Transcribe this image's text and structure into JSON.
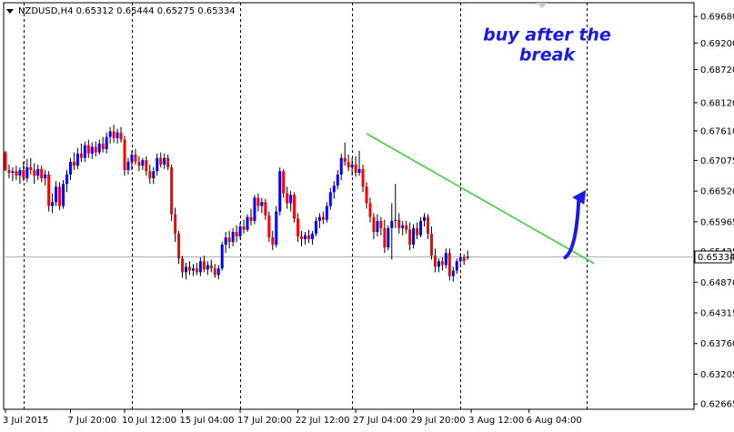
{
  "chart_data": {
    "type": "candlestick",
    "symbol": "NZDUSD,H4",
    "ohlc_header": [
      "0.65312",
      "0.65444",
      "0.65275",
      "0.65334"
    ],
    "current_price": 0.65334,
    "current_price_label": "0.65334",
    "ylim": [
      0.6257,
      0.6993
    ],
    "y_ticks": [
      {
        "value": 0.6968,
        "label": "0.69680"
      },
      {
        "value": 0.692,
        "label": "0.69200"
      },
      {
        "value": 0.6872,
        "label": "0.68720"
      },
      {
        "value": 0.6812,
        "label": "0.68120"
      },
      {
        "value": 0.6761,
        "label": "0.67610"
      },
      {
        "value": 0.67075,
        "label": "0.67075"
      },
      {
        "value": 0.6652,
        "label": "0.66520"
      },
      {
        "value": 0.65965,
        "label": "0.65965"
      },
      {
        "value": 0.65425,
        "label": "0.65425"
      },
      {
        "value": 0.6487,
        "label": "0.64870"
      },
      {
        "value": 0.64315,
        "label": "0.64315"
      },
      {
        "value": 0.6376,
        "label": "0.63760"
      },
      {
        "value": 0.63205,
        "label": "0.63205"
      },
      {
        "value": 0.62665,
        "label": "0.62665"
      }
    ],
    "x_ticks": [
      {
        "index": 0,
        "label": "3 Jul 2015"
      },
      {
        "index": 18,
        "label": "7 Jul 20:00"
      },
      {
        "index": 33,
        "label": "10 Jul 12:00"
      },
      {
        "index": 49,
        "label": "15 Jul 04:00"
      },
      {
        "index": 65,
        "label": "17 Jul 20:00"
      },
      {
        "index": 81,
        "label": "22 Jul 12:00"
      },
      {
        "index": 97,
        "label": "27 Jul 04:00"
      },
      {
        "index": 113,
        "label": "29 Jul 20:00"
      },
      {
        "index": 129,
        "label": "3 Aug 12:00"
      },
      {
        "index": 145,
        "label": "6 Aug 04:00"
      }
    ],
    "period_separators": [
      5,
      35,
      65,
      96,
      126,
      161
    ],
    "candles": [
      {
        "o": 0.6722,
        "h": 0.6725,
        "l": 0.6688,
        "c": 0.669
      },
      {
        "o": 0.669,
        "h": 0.67,
        "l": 0.6675,
        "c": 0.6685
      },
      {
        "o": 0.6685,
        "h": 0.6695,
        "l": 0.667,
        "c": 0.6688
      },
      {
        "o": 0.6688,
        "h": 0.6698,
        "l": 0.6672,
        "c": 0.668
      },
      {
        "o": 0.668,
        "h": 0.6695,
        "l": 0.6665,
        "c": 0.669
      },
      {
        "o": 0.669,
        "h": 0.6705,
        "l": 0.667,
        "c": 0.6675
      },
      {
        "o": 0.6675,
        "h": 0.671,
        "l": 0.6668,
        "c": 0.6695
      },
      {
        "o": 0.6695,
        "h": 0.6712,
        "l": 0.6682,
        "c": 0.669
      },
      {
        "o": 0.669,
        "h": 0.6702,
        "l": 0.6665,
        "c": 0.668
      },
      {
        "o": 0.668,
        "h": 0.67,
        "l": 0.6672,
        "c": 0.6692
      },
      {
        "o": 0.6692,
        "h": 0.6698,
        "l": 0.6668,
        "c": 0.6675
      },
      {
        "o": 0.6675,
        "h": 0.669,
        "l": 0.6662,
        "c": 0.6682
      },
      {
        "o": 0.6682,
        "h": 0.6688,
        "l": 0.6615,
        "c": 0.6625
      },
      {
        "o": 0.6625,
        "h": 0.6648,
        "l": 0.6612,
        "c": 0.6632
      },
      {
        "o": 0.6632,
        "h": 0.667,
        "l": 0.6625,
        "c": 0.666
      },
      {
        "o": 0.666,
        "h": 0.6668,
        "l": 0.6618,
        "c": 0.6625
      },
      {
        "o": 0.6625,
        "h": 0.6672,
        "l": 0.662,
        "c": 0.6665
      },
      {
        "o": 0.6665,
        "h": 0.669,
        "l": 0.665,
        "c": 0.6682
      },
      {
        "o": 0.6682,
        "h": 0.6712,
        "l": 0.6672,
        "c": 0.6705
      },
      {
        "o": 0.6705,
        "h": 0.6722,
        "l": 0.669,
        "c": 0.6698
      },
      {
        "o": 0.6698,
        "h": 0.673,
        "l": 0.6692,
        "c": 0.672
      },
      {
        "o": 0.672,
        "h": 0.6738,
        "l": 0.6705,
        "c": 0.6712
      },
      {
        "o": 0.6712,
        "h": 0.6742,
        "l": 0.6705,
        "c": 0.6735
      },
      {
        "o": 0.6735,
        "h": 0.6745,
        "l": 0.6712,
        "c": 0.672
      },
      {
        "o": 0.672,
        "h": 0.674,
        "l": 0.671,
        "c": 0.6732
      },
      {
        "o": 0.6732,
        "h": 0.6742,
        "l": 0.6715,
        "c": 0.6722
      },
      {
        "o": 0.6722,
        "h": 0.6745,
        "l": 0.6718,
        "c": 0.6738
      },
      {
        "o": 0.6738,
        "h": 0.675,
        "l": 0.6722,
        "c": 0.6728
      },
      {
        "o": 0.6728,
        "h": 0.6758,
        "l": 0.672,
        "c": 0.675
      },
      {
        "o": 0.675,
        "h": 0.6768,
        "l": 0.6738,
        "c": 0.676
      },
      {
        "o": 0.676,
        "h": 0.6772,
        "l": 0.674,
        "c": 0.6748
      },
      {
        "o": 0.6748,
        "h": 0.6765,
        "l": 0.6738,
        "c": 0.6758
      },
      {
        "o": 0.6758,
        "h": 0.6768,
        "l": 0.674,
        "c": 0.6745
      },
      {
        "o": 0.6745,
        "h": 0.6752,
        "l": 0.668,
        "c": 0.669
      },
      {
        "o": 0.669,
        "h": 0.6712,
        "l": 0.6682,
        "c": 0.6705
      },
      {
        "o": 0.6705,
        "h": 0.6725,
        "l": 0.669,
        "c": 0.6718
      },
      {
        "o": 0.6718,
        "h": 0.6728,
        "l": 0.67,
        "c": 0.6705
      },
      {
        "o": 0.6705,
        "h": 0.6715,
        "l": 0.6688,
        "c": 0.6698
      },
      {
        "o": 0.6698,
        "h": 0.6712,
        "l": 0.669,
        "c": 0.6708
      },
      {
        "o": 0.6708,
        "h": 0.6715,
        "l": 0.668,
        "c": 0.6688
      },
      {
        "o": 0.6688,
        "h": 0.67,
        "l": 0.6665,
        "c": 0.6675
      },
      {
        "o": 0.6675,
        "h": 0.6695,
        "l": 0.6665,
        "c": 0.6688
      },
      {
        "o": 0.6688,
        "h": 0.672,
        "l": 0.668,
        "c": 0.6712
      },
      {
        "o": 0.6712,
        "h": 0.6722,
        "l": 0.6695,
        "c": 0.67
      },
      {
        "o": 0.67,
        "h": 0.672,
        "l": 0.6692,
        "c": 0.6712
      },
      {
        "o": 0.6712,
        "h": 0.6718,
        "l": 0.669,
        "c": 0.6695
      },
      {
        "o": 0.6695,
        "h": 0.67,
        "l": 0.6598,
        "c": 0.661
      },
      {
        "o": 0.661,
        "h": 0.6622,
        "l": 0.656,
        "c": 0.6575
      },
      {
        "o": 0.6575,
        "h": 0.658,
        "l": 0.652,
        "c": 0.653
      },
      {
        "o": 0.653,
        "h": 0.6535,
        "l": 0.6495,
        "c": 0.6505
      },
      {
        "o": 0.6505,
        "h": 0.6522,
        "l": 0.6492,
        "c": 0.6515
      },
      {
        "o": 0.6515,
        "h": 0.6525,
        "l": 0.65,
        "c": 0.6508
      },
      {
        "o": 0.6508,
        "h": 0.652,
        "l": 0.6498,
        "c": 0.6512
      },
      {
        "o": 0.6512,
        "h": 0.6522,
        "l": 0.65,
        "c": 0.6505
      },
      {
        "o": 0.6505,
        "h": 0.6532,
        "l": 0.6498,
        "c": 0.6525
      },
      {
        "o": 0.6525,
        "h": 0.6535,
        "l": 0.6505,
        "c": 0.651
      },
      {
        "o": 0.651,
        "h": 0.6525,
        "l": 0.65,
        "c": 0.6518
      },
      {
        "o": 0.6518,
        "h": 0.6528,
        "l": 0.6505,
        "c": 0.6512
      },
      {
        "o": 0.6512,
        "h": 0.652,
        "l": 0.6495,
        "c": 0.65
      },
      {
        "o": 0.65,
        "h": 0.6518,
        "l": 0.6492,
        "c": 0.6512
      },
      {
        "o": 0.6512,
        "h": 0.656,
        "l": 0.6508,
        "c": 0.6555
      },
      {
        "o": 0.6555,
        "h": 0.6578,
        "l": 0.654,
        "c": 0.6568
      },
      {
        "o": 0.6568,
        "h": 0.658,
        "l": 0.6548,
        "c": 0.656
      },
      {
        "o": 0.656,
        "h": 0.6585,
        "l": 0.6552,
        "c": 0.6578
      },
      {
        "o": 0.6578,
        "h": 0.659,
        "l": 0.656,
        "c": 0.657
      },
      {
        "o": 0.657,
        "h": 0.6595,
        "l": 0.6565,
        "c": 0.6588
      },
      {
        "o": 0.6588,
        "h": 0.66,
        "l": 0.6575,
        "c": 0.6582
      },
      {
        "o": 0.6582,
        "h": 0.661,
        "l": 0.6578,
        "c": 0.6605
      },
      {
        "o": 0.6605,
        "h": 0.662,
        "l": 0.659,
        "c": 0.6598
      },
      {
        "o": 0.6598,
        "h": 0.6645,
        "l": 0.6592,
        "c": 0.664
      },
      {
        "o": 0.664,
        "h": 0.6648,
        "l": 0.6615,
        "c": 0.6625
      },
      {
        "o": 0.6625,
        "h": 0.664,
        "l": 0.6612,
        "c": 0.6632
      },
      {
        "o": 0.6632,
        "h": 0.6638,
        "l": 0.66,
        "c": 0.6608
      },
      {
        "o": 0.6608,
        "h": 0.6615,
        "l": 0.656,
        "c": 0.6568
      },
      {
        "o": 0.6568,
        "h": 0.658,
        "l": 0.6545,
        "c": 0.6555
      },
      {
        "o": 0.6555,
        "h": 0.6625,
        "l": 0.655,
        "c": 0.6615
      },
      {
        "o": 0.6615,
        "h": 0.6695,
        "l": 0.6608,
        "c": 0.6688
      },
      {
        "o": 0.6688,
        "h": 0.6692,
        "l": 0.664,
        "c": 0.6648
      },
      {
        "o": 0.6648,
        "h": 0.666,
        "l": 0.662,
        "c": 0.663
      },
      {
        "o": 0.663,
        "h": 0.6652,
        "l": 0.6615,
        "c": 0.6645
      },
      {
        "o": 0.6645,
        "h": 0.665,
        "l": 0.6595,
        "c": 0.6602
      },
      {
        "o": 0.6602,
        "h": 0.6612,
        "l": 0.656,
        "c": 0.657
      },
      {
        "o": 0.657,
        "h": 0.658,
        "l": 0.6552,
        "c": 0.6565
      },
      {
        "o": 0.6565,
        "h": 0.6578,
        "l": 0.6555,
        "c": 0.6572
      },
      {
        "o": 0.6572,
        "h": 0.6582,
        "l": 0.6558,
        "c": 0.6565
      },
      {
        "o": 0.6565,
        "h": 0.658,
        "l": 0.6555,
        "c": 0.6575
      },
      {
        "o": 0.6575,
        "h": 0.6605,
        "l": 0.657,
        "c": 0.6598
      },
      {
        "o": 0.6598,
        "h": 0.6612,
        "l": 0.6585,
        "c": 0.6605
      },
      {
        "o": 0.6605,
        "h": 0.6615,
        "l": 0.6592,
        "c": 0.66
      },
      {
        "o": 0.66,
        "h": 0.6632,
        "l": 0.6595,
        "c": 0.6625
      },
      {
        "o": 0.6625,
        "h": 0.6658,
        "l": 0.6618,
        "c": 0.665
      },
      {
        "o": 0.665,
        "h": 0.667,
        "l": 0.6638,
        "c": 0.6662
      },
      {
        "o": 0.6662,
        "h": 0.669,
        "l": 0.6655,
        "c": 0.6682
      },
      {
        "o": 0.6682,
        "h": 0.672,
        "l": 0.6672,
        "c": 0.6712
      },
      {
        "o": 0.6712,
        "h": 0.674,
        "l": 0.6698,
        "c": 0.6705
      },
      {
        "o": 0.6705,
        "h": 0.6718,
        "l": 0.6688,
        "c": 0.6695
      },
      {
        "o": 0.6695,
        "h": 0.6712,
        "l": 0.668,
        "c": 0.67
      },
      {
        "o": 0.67,
        "h": 0.6715,
        "l": 0.6678,
        "c": 0.6685
      },
      {
        "o": 0.6685,
        "h": 0.6725,
        "l": 0.668,
        "c": 0.6692
      },
      {
        "o": 0.6692,
        "h": 0.67,
        "l": 0.665,
        "c": 0.666
      },
      {
        "o": 0.666,
        "h": 0.6668,
        "l": 0.662,
        "c": 0.663
      },
      {
        "o": 0.663,
        "h": 0.664,
        "l": 0.6595,
        "c": 0.6605
      },
      {
        "o": 0.6605,
        "h": 0.6612,
        "l": 0.6565,
        "c": 0.6578
      },
      {
        "o": 0.6578,
        "h": 0.661,
        "l": 0.657,
        "c": 0.6598
      },
      {
        "o": 0.6598,
        "h": 0.6605,
        "l": 0.6572,
        "c": 0.6585
      },
      {
        "o": 0.6585,
        "h": 0.66,
        "l": 0.654,
        "c": 0.655
      },
      {
        "o": 0.655,
        "h": 0.659,
        "l": 0.6545,
        "c": 0.6585
      },
      {
        "o": 0.6585,
        "h": 0.663,
        "l": 0.6528,
        "c": 0.6598
      },
      {
        "o": 0.6598,
        "h": 0.6665,
        "l": 0.6585,
        "c": 0.66
      },
      {
        "o": 0.66,
        "h": 0.6612,
        "l": 0.6575,
        "c": 0.6585
      },
      {
        "o": 0.6585,
        "h": 0.6598,
        "l": 0.6572,
        "c": 0.659
      },
      {
        "o": 0.659,
        "h": 0.6598,
        "l": 0.6575,
        "c": 0.6582
      },
      {
        "o": 0.6582,
        "h": 0.6595,
        "l": 0.6545,
        "c": 0.6555
      },
      {
        "o": 0.6555,
        "h": 0.6592,
        "l": 0.6548,
        "c": 0.6585
      },
      {
        "o": 0.6585,
        "h": 0.6595,
        "l": 0.6565,
        "c": 0.6572
      },
      {
        "o": 0.6572,
        "h": 0.6605,
        "l": 0.6568,
        "c": 0.6598
      },
      {
        "o": 0.6598,
        "h": 0.6612,
        "l": 0.6588,
        "c": 0.6605
      },
      {
        "o": 0.6605,
        "h": 0.661,
        "l": 0.6565,
        "c": 0.6575
      },
      {
        "o": 0.6575,
        "h": 0.6588,
        "l": 0.6528,
        "c": 0.6535
      },
      {
        "o": 0.6535,
        "h": 0.6548,
        "l": 0.6505,
        "c": 0.6515
      },
      {
        "o": 0.6515,
        "h": 0.653,
        "l": 0.6505,
        "c": 0.6525
      },
      {
        "o": 0.6525,
        "h": 0.6532,
        "l": 0.6508,
        "c": 0.6518
      },
      {
        "o": 0.6518,
        "h": 0.6548,
        "l": 0.6512,
        "c": 0.654
      },
      {
        "o": 0.654,
        "h": 0.6548,
        "l": 0.649,
        "c": 0.6498
      },
      {
        "o": 0.6498,
        "h": 0.6515,
        "l": 0.6488,
        "c": 0.6508
      },
      {
        "o": 0.6508,
        "h": 0.653,
        "l": 0.6502,
        "c": 0.6525
      },
      {
        "o": 0.6525,
        "h": 0.654,
        "l": 0.6515,
        "c": 0.6532
      },
      {
        "o": 0.6532,
        "h": 0.6538,
        "l": 0.6518,
        "c": 0.6525
      },
      {
        "o": 0.65312,
        "h": 0.65444,
        "l": 0.65275,
        "c": 0.65334
      }
    ],
    "trendline": {
      "color": "#33cc33",
      "start_index": 100,
      "start_price": 0.6756,
      "end_index": 163,
      "end_price": 0.6521
    },
    "arrow": {
      "color": "#1a1ae6",
      "start_index": 155,
      "start_price": 0.6532,
      "end_index": 160,
      "end_price": 0.6654
    },
    "annotation": {
      "lines": [
        "buy after the",
        "break"
      ],
      "color": "#1a1ae6",
      "anchor_index": 150,
      "price": 0.6925
    },
    "colors": {
      "bull": "#0000ff",
      "bear": "#ff0000",
      "wick": "#000000",
      "grid": "#000000"
    },
    "grid": "vertical-dashed"
  }
}
